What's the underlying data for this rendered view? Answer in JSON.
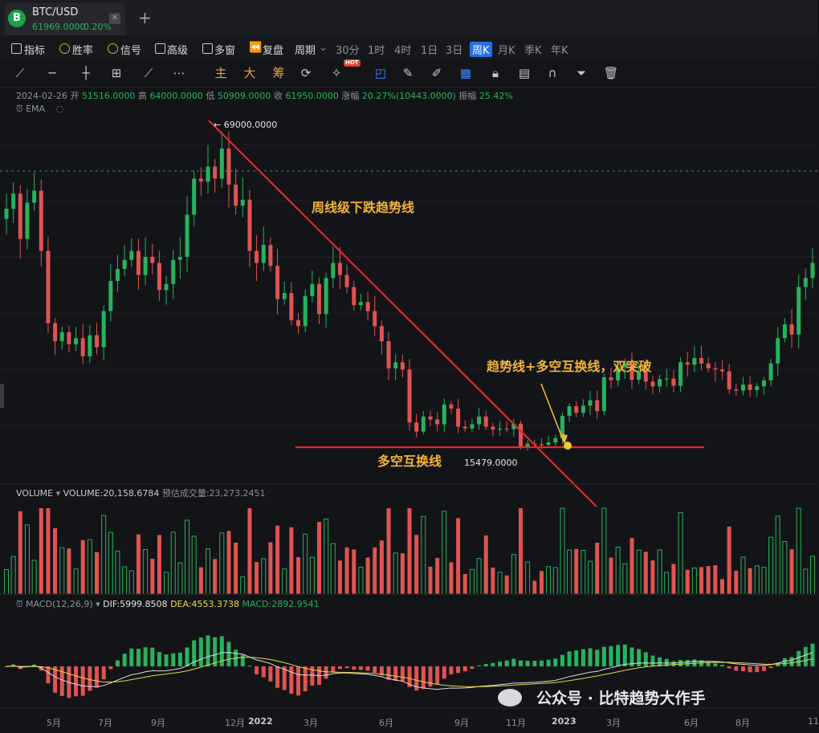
{
  "tab": {
    "logo_letter": "B",
    "symbol": "BTC/USD",
    "price": "61969.0000",
    "change": "0.20%",
    "close_glyph": "✕",
    "add_glyph": "+"
  },
  "toolbar": {
    "items": [
      "指标",
      "胜率",
      "信号",
      "高级",
      "多窗",
      "复盘",
      "周期"
    ],
    "periods": [
      "30分",
      "1时",
      "4时",
      "1日",
      "3日",
      "周K",
      "月K",
      "季K",
      "年K"
    ],
    "selected_period": "周K"
  },
  "drawing_tools": {
    "chinese_tools": [
      "主",
      "大",
      "筹"
    ],
    "hot_badge": "HOT",
    "icons": [
      "line-tool-icon",
      "hline-tool-icon",
      "crosshair-add-icon",
      "ray-tool-icon",
      "more-dots-icon",
      "sync-icon",
      "magic-tool-icon",
      "select-box-icon",
      "ruler-icon",
      "brush-icon",
      "grid-icon",
      "lock-icon",
      "note-icon",
      "magnet-icon",
      "filter-icon",
      "trash-icon"
    ]
  },
  "info": {
    "date": "2024-02-26",
    "open_label": "开",
    "open": "51516.0000",
    "high_label": "高",
    "high": "64000.0000",
    "low_label": "低",
    "low": "50909.0000",
    "close_label": "收",
    "close": "61950.0000",
    "chg_label": "涨幅",
    "chg": "20.27%(10443.0000)",
    "amp_label": "振幅",
    "amp": "25.42%",
    "ema": "EMA"
  },
  "annotations": {
    "trendline": "周线级下跌趋势线",
    "flipline": "多空互换线",
    "breakout": "趋势线+多空互换线，双突破",
    "high_price": "← 69000.0000",
    "low_price": "15479.0000"
  },
  "volume": {
    "label": "VOLUME",
    "value": "VOLUME:20,158.6784",
    "est_label": "预估成交量:23,273.2451"
  },
  "macd": {
    "label": "MACD(12,26,9)",
    "dif": "DIF:5999.8508",
    "dea": "DEA:4553.3738",
    "macd": "MACD:2892.9541"
  },
  "x_axis": [
    "5月",
    "7月",
    "9月",
    "12月",
    "2022",
    "3月",
    "6月",
    "9月",
    "11月",
    "2023",
    "3月",
    "6月",
    "8月",
    "11"
  ],
  "watermark": "公众号 · 比特趋势大作手",
  "colors": {
    "up": "#27b35c",
    "down": "#e05450",
    "trend": "#e22a2e",
    "annotation": "#f2b43a",
    "selected": "#2a6ee6"
  },
  "chart_data": {
    "type": "candlestick",
    "interval": "weekly",
    "close_series": [
      56000,
      58500,
      51000,
      57000,
      59000,
      49000,
      37000,
      34000,
      35500,
      33500,
      34500,
      31500,
      35000,
      33000,
      39000,
      44000,
      46000,
      47500,
      49000,
      45000,
      48000,
      47000,
      42500,
      43500,
      47500,
      48000,
      55000,
      61000,
      60500,
      63000,
      61000,
      66000,
      60000,
      56500,
      57500,
      49000,
      47000,
      50000,
      46500,
      41000,
      42000,
      37500,
      36500,
      41500,
      43500,
      38500,
      44500,
      47000,
      45000,
      43000,
      40000,
      40500,
      39000,
      36500,
      34000,
      29500,
      30500,
      29300,
      20500,
      19000,
      21500,
      21000,
      20200,
      23500,
      22800,
      19800,
      19500,
      20200,
      21500,
      19800,
      19300,
      19500,
      19400,
      20300,
      16500,
      17000,
      16900,
      16800,
      17200,
      17900,
      21600,
      23200,
      22100,
      23300,
      24200,
      22400,
      28000,
      27500,
      29700,
      30300,
      27600,
      29000,
      27300,
      26500,
      27700,
      27800,
      26600,
      30500,
      30100,
      31200,
      30300,
      29500,
      29300,
      29000,
      26000,
      25800,
      26800,
      25900,
      26500,
      27500,
      30300,
      34500,
      36800,
      35100,
      43000,
      44500,
      47000
    ],
    "notable_prices": {
      "high": 69000,
      "low": 15479
    },
    "macd": {
      "dif": 5999.8508,
      "dea": 4553.3738,
      "macd": 2892.9541
    }
  }
}
